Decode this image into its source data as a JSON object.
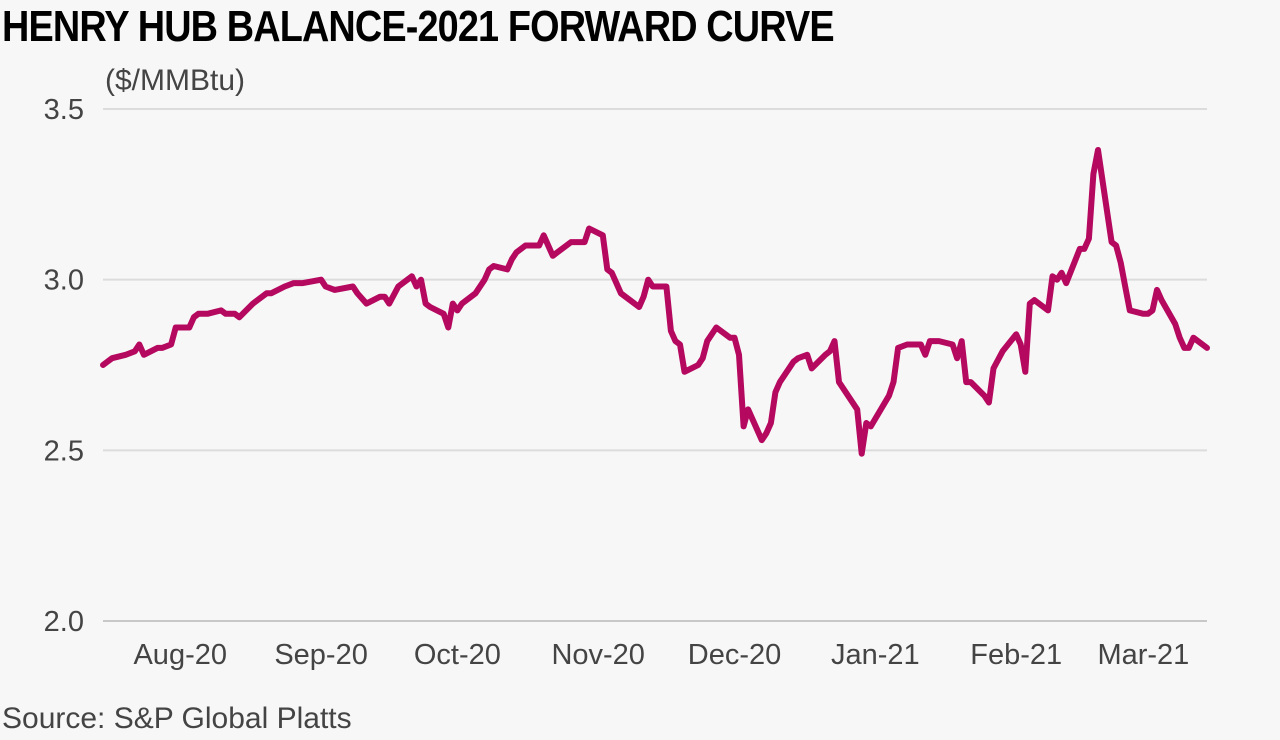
{
  "chart_data": {
    "type": "line",
    "title": "HENRY HUB BALANCE-2021 FORWARD CURVE",
    "unit_label": "($/MMBtu)",
    "source": "Source: S&P Global Platts",
    "ylim": [
      2.0,
      3.5
    ],
    "yticks": [
      "2.0",
      "2.5",
      "3.0",
      "3.5"
    ],
    "grid": true,
    "line_color": "#b5085f",
    "x_start": "2020-07-15",
    "x_end": "2021-03-15",
    "x_tick_labels": [
      {
        "label": "Aug-20",
        "date": "2020-08-01"
      },
      {
        "label": "Sep-20",
        "date": "2020-09-01"
      },
      {
        "label": "Oct-20",
        "date": "2020-10-01"
      },
      {
        "label": "Nov-20",
        "date": "2020-11-01"
      },
      {
        "label": "Dec-20",
        "date": "2020-12-01"
      },
      {
        "label": "Jan-21",
        "date": "2021-01-01"
      },
      {
        "label": "Feb-21",
        "date": "2021-02-01"
      },
      {
        "label": "Mar-21",
        "date": "2021-03-01"
      }
    ],
    "series": [
      {
        "values": [
          [
            "2020-07-15",
            2.75
          ],
          [
            "2020-07-16",
            2.76
          ],
          [
            "2020-07-17",
            2.77
          ],
          [
            "2020-07-20",
            2.78
          ],
          [
            "2020-07-22",
            2.79
          ],
          [
            "2020-07-23",
            2.81
          ],
          [
            "2020-07-24",
            2.78
          ],
          [
            "2020-07-27",
            2.8
          ],
          [
            "2020-07-28",
            2.8
          ],
          [
            "2020-07-30",
            2.81
          ],
          [
            "2020-07-31",
            2.86
          ],
          [
            "2020-08-03",
            2.86
          ],
          [
            "2020-08-04",
            2.89
          ],
          [
            "2020-08-05",
            2.9
          ],
          [
            "2020-08-07",
            2.9
          ],
          [
            "2020-08-10",
            2.91
          ],
          [
            "2020-08-11",
            2.9
          ],
          [
            "2020-08-13",
            2.9
          ],
          [
            "2020-08-14",
            2.89
          ],
          [
            "2020-08-17",
            2.93
          ],
          [
            "2020-08-18",
            2.94
          ],
          [
            "2020-08-20",
            2.96
          ],
          [
            "2020-08-21",
            2.96
          ],
          [
            "2020-08-24",
            2.98
          ],
          [
            "2020-08-26",
            2.99
          ],
          [
            "2020-08-28",
            2.99
          ],
          [
            "2020-09-01",
            3.0
          ],
          [
            "2020-09-02",
            2.98
          ],
          [
            "2020-09-04",
            2.97
          ],
          [
            "2020-09-08",
            2.98
          ],
          [
            "2020-09-09",
            2.96
          ],
          [
            "2020-09-11",
            2.93
          ],
          [
            "2020-09-14",
            2.95
          ],
          [
            "2020-09-15",
            2.95
          ],
          [
            "2020-09-16",
            2.93
          ],
          [
            "2020-09-18",
            2.98
          ],
          [
            "2020-09-21",
            3.01
          ],
          [
            "2020-09-22",
            2.98
          ],
          [
            "2020-09-23",
            3.0
          ],
          [
            "2020-09-24",
            2.93
          ],
          [
            "2020-09-25",
            2.92
          ],
          [
            "2020-09-28",
            2.9
          ],
          [
            "2020-09-29",
            2.86
          ],
          [
            "2020-09-30",
            2.93
          ],
          [
            "2020-10-01",
            2.91
          ],
          [
            "2020-10-02",
            2.93
          ],
          [
            "2020-10-05",
            2.96
          ],
          [
            "2020-10-07",
            3.0
          ],
          [
            "2020-10-08",
            3.03
          ],
          [
            "2020-10-09",
            3.04
          ],
          [
            "2020-10-12",
            3.03
          ],
          [
            "2020-10-13",
            3.06
          ],
          [
            "2020-10-14",
            3.08
          ],
          [
            "2020-10-16",
            3.1
          ],
          [
            "2020-10-19",
            3.1
          ],
          [
            "2020-10-20",
            3.13
          ],
          [
            "2020-10-21",
            3.1
          ],
          [
            "2020-10-22",
            3.07
          ],
          [
            "2020-10-23",
            3.08
          ],
          [
            "2020-10-26",
            3.11
          ],
          [
            "2020-10-27",
            3.11
          ],
          [
            "2020-10-28",
            3.11
          ],
          [
            "2020-10-29",
            3.11
          ],
          [
            "2020-10-30",
            3.15
          ],
          [
            "2020-11-02",
            3.13
          ],
          [
            "2020-11-03",
            3.03
          ],
          [
            "2020-11-04",
            3.02
          ],
          [
            "2020-11-05",
            2.99
          ],
          [
            "2020-11-06",
            2.96
          ],
          [
            "2020-11-09",
            2.93
          ],
          [
            "2020-11-10",
            2.92
          ],
          [
            "2020-11-11",
            2.95
          ],
          [
            "2020-11-12",
            3.0
          ],
          [
            "2020-11-13",
            2.98
          ],
          [
            "2020-11-16",
            2.98
          ],
          [
            "2020-11-17",
            2.85
          ],
          [
            "2020-11-18",
            2.82
          ],
          [
            "2020-11-19",
            2.81
          ],
          [
            "2020-11-20",
            2.73
          ],
          [
            "2020-11-23",
            2.75
          ],
          [
            "2020-11-24",
            2.77
          ],
          [
            "2020-11-25",
            2.82
          ],
          [
            "2020-11-27",
            2.86
          ],
          [
            "2020-11-30",
            2.83
          ],
          [
            "2020-12-01",
            2.83
          ],
          [
            "2020-12-02",
            2.78
          ],
          [
            "2020-12-03",
            2.57
          ],
          [
            "2020-12-04",
            2.62
          ],
          [
            "2020-12-07",
            2.53
          ],
          [
            "2020-12-08",
            2.55
          ],
          [
            "2020-12-09",
            2.58
          ],
          [
            "2020-12-10",
            2.67
          ],
          [
            "2020-12-11",
            2.7
          ],
          [
            "2020-12-14",
            2.76
          ],
          [
            "2020-12-15",
            2.77
          ],
          [
            "2020-12-17",
            2.78
          ],
          [
            "2020-12-18",
            2.74
          ],
          [
            "2020-12-21",
            2.78
          ],
          [
            "2020-12-22",
            2.79
          ],
          [
            "2020-12-23",
            2.82
          ],
          [
            "2020-12-24",
            2.7
          ],
          [
            "2020-12-28",
            2.62
          ],
          [
            "2020-12-29",
            2.49
          ],
          [
            "2020-12-30",
            2.58
          ],
          [
            "2020-12-31",
            2.57
          ],
          [
            "2021-01-04",
            2.66
          ],
          [
            "2021-01-05",
            2.7
          ],
          [
            "2021-01-06",
            2.8
          ],
          [
            "2021-01-08",
            2.81
          ],
          [
            "2021-01-11",
            2.81
          ],
          [
            "2021-01-12",
            2.78
          ],
          [
            "2021-01-13",
            2.82
          ],
          [
            "2021-01-15",
            2.82
          ],
          [
            "2021-01-18",
            2.81
          ],
          [
            "2021-01-19",
            2.77
          ],
          [
            "2021-01-20",
            2.82
          ],
          [
            "2021-01-21",
            2.7
          ],
          [
            "2021-01-22",
            2.7
          ],
          [
            "2021-01-25",
            2.66
          ],
          [
            "2021-01-26",
            2.64
          ],
          [
            "2021-01-27",
            2.74
          ],
          [
            "2021-01-29",
            2.79
          ],
          [
            "2021-02-01",
            2.84
          ],
          [
            "2021-02-02",
            2.81
          ],
          [
            "2021-02-03",
            2.73
          ],
          [
            "2021-02-04",
            2.93
          ],
          [
            "2021-02-05",
            2.94
          ],
          [
            "2021-02-08",
            2.91
          ],
          [
            "2021-02-09",
            3.01
          ],
          [
            "2021-02-10",
            3.0
          ],
          [
            "2021-02-11",
            3.02
          ],
          [
            "2021-02-12",
            2.99
          ],
          [
            "2021-02-15",
            3.09
          ],
          [
            "2021-02-16",
            3.09
          ],
          [
            "2021-02-17",
            3.12
          ],
          [
            "2021-02-18",
            3.31
          ],
          [
            "2021-02-19",
            3.38
          ],
          [
            "2021-02-22",
            3.11
          ],
          [
            "2021-02-23",
            3.1
          ],
          [
            "2021-02-24",
            3.05
          ],
          [
            "2021-02-25",
            2.98
          ],
          [
            "2021-02-26",
            2.91
          ],
          [
            "2021-03-01",
            2.9
          ],
          [
            "2021-03-02",
            2.9
          ],
          [
            "2021-03-03",
            2.91
          ],
          [
            "2021-03-04",
            2.97
          ],
          [
            "2021-03-05",
            2.94
          ],
          [
            "2021-03-08",
            2.87
          ],
          [
            "2021-03-09",
            2.83
          ],
          [
            "2021-03-10",
            2.8
          ],
          [
            "2021-03-11",
            2.8
          ],
          [
            "2021-03-12",
            2.83
          ],
          [
            "2021-03-15",
            2.8
          ]
        ]
      }
    ]
  }
}
